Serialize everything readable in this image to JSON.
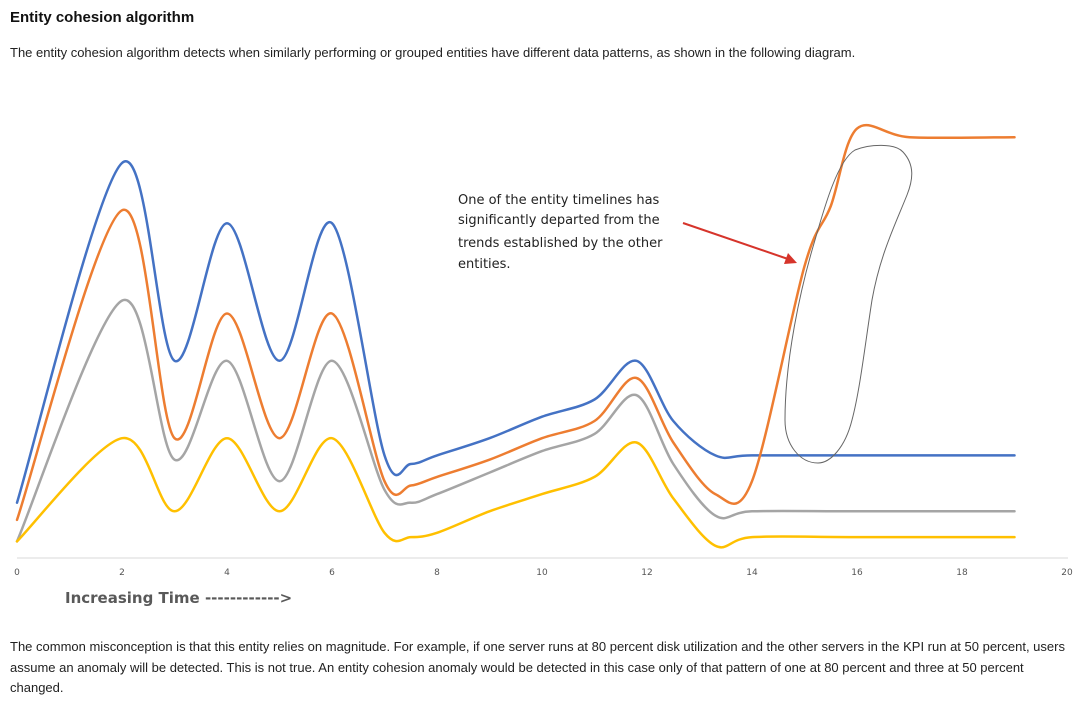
{
  "page": {
    "title": "Entity cohesion algorithm",
    "intro": "The entity cohesion algorithm detects when similarly performing or grouped entities have different data patterns, as shown in the following diagram.",
    "closing": "The common misconception is that this entity relies on magnitude. For example, if one server runs at 80 percent disk utilization and the other servers in the KPI run at 50 percent, users assume an anomaly will be detected. This is not true. An entity cohesion anomaly would be detected in this case only of that pattern of one at 80 percent and three at 50 percent changed."
  },
  "chart_data": {
    "type": "line",
    "xlabel": "Increasing Time ------------>",
    "ylabel": "",
    "title": "",
    "xlim": [
      0,
      20
    ],
    "ylim": [
      0,
      100
    ],
    "x_ticks": [
      "0",
      "2",
      "4",
      "6",
      "8",
      "10",
      "12",
      "14",
      "16",
      "18",
      "20"
    ],
    "grid": false,
    "legend": "none",
    "series": [
      {
        "color": "#4472C4",
        "points": [
          [
            0,
            11
          ],
          [
            2,
            90
          ],
          [
            3,
            44
          ],
          [
            4,
            76
          ],
          [
            5,
            44
          ],
          [
            6,
            76
          ],
          [
            7,
            22
          ],
          [
            7.5,
            20
          ],
          [
            8,
            22
          ],
          [
            9,
            26
          ],
          [
            10,
            31
          ],
          [
            11,
            35
          ],
          [
            11.8,
            44
          ],
          [
            12.5,
            30
          ],
          [
            13.3,
            22
          ],
          [
            14,
            22
          ],
          [
            16,
            22
          ],
          [
            19,
            22
          ]
        ]
      },
      {
        "color": "#ED7D31",
        "points": [
          [
            0,
            7
          ],
          [
            2,
            79
          ],
          [
            3,
            26
          ],
          [
            4,
            55
          ],
          [
            5,
            26
          ],
          [
            6,
            55
          ],
          [
            7,
            16
          ],
          [
            7.5,
            15
          ],
          [
            8,
            17
          ],
          [
            9,
            21
          ],
          [
            10,
            26
          ],
          [
            11,
            30
          ],
          [
            11.8,
            40
          ],
          [
            12.5,
            25
          ],
          [
            13.3,
            13
          ],
          [
            14,
            16
          ],
          [
            15,
            66
          ],
          [
            15.5,
            80
          ],
          [
            16,
            98
          ],
          [
            17,
            96
          ],
          [
            19,
            96
          ]
        ]
      },
      {
        "color": "#A5A5A5",
        "points": [
          [
            0,
            2
          ],
          [
            2,
            58
          ],
          [
            3,
            21
          ],
          [
            4,
            44
          ],
          [
            5,
            16
          ],
          [
            6,
            44
          ],
          [
            7,
            14
          ],
          [
            7.5,
            11
          ],
          [
            8,
            13
          ],
          [
            9,
            18
          ],
          [
            10,
            23
          ],
          [
            11,
            27
          ],
          [
            11.8,
            36
          ],
          [
            12.5,
            20
          ],
          [
            13.3,
            8
          ],
          [
            14,
            9
          ],
          [
            16,
            9
          ],
          [
            19,
            9
          ]
        ]
      },
      {
        "color": "#FFC000",
        "points": [
          [
            0,
            2
          ],
          [
            2,
            26
          ],
          [
            3,
            9
          ],
          [
            4,
            26
          ],
          [
            5,
            9
          ],
          [
            6,
            26
          ],
          [
            7,
            4
          ],
          [
            7.5,
            3
          ],
          [
            8,
            4
          ],
          [
            9,
            9
          ],
          [
            10,
            13
          ],
          [
            11,
            17
          ],
          [
            11.8,
            25
          ],
          [
            12.5,
            12
          ],
          [
            13.3,
            1
          ],
          [
            14,
            3
          ],
          [
            16,
            3
          ],
          [
            19,
            3
          ]
        ]
      }
    ],
    "annotation": {
      "lines": [
        "One of the entity timelines has",
        "significantly departed from the",
        "trends established by the other",
        "entities."
      ],
      "arrow_color": "#D6342B",
      "outline_color": "#666666"
    }
  }
}
